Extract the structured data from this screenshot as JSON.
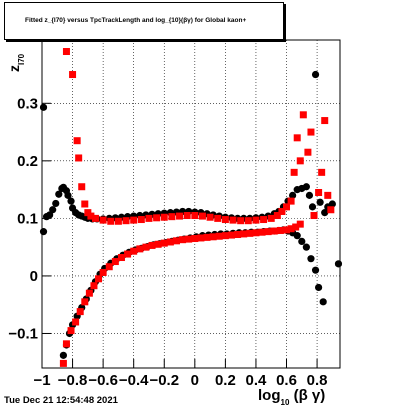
{
  "title": "Fitted  z_{I70}  versus TpcTrackLength and log_{10}(βγ) for Global kaon+",
  "timestamp": "Tue Dec 21 12:54:48 2021",
  "axis": {
    "y_label": "z",
    "y_label_sub": "I70",
    "x_label": "log",
    "x_label_sub": "10",
    "x_label_suffix": "(β γ)"
  },
  "colors": {
    "series_a": "#000000",
    "series_b": "#ff0000",
    "grid": "#000000"
  },
  "chart_data": {
    "type": "scatter",
    "title": "Fitted  z_{I70}  versus TpcTrackLength and log_{10}(βγ) for Global kaon+",
    "xlabel": "log_{10}(β γ)",
    "ylabel": "z_{I70}",
    "xlim": [
      -1.0,
      0.95
    ],
    "ylim": [
      -0.16,
      0.41
    ],
    "grid": true,
    "x_ticks": [
      -1,
      -0.8,
      -0.6,
      -0.4,
      -0.2,
      0,
      0.2,
      0.4,
      0.6,
      0.8
    ],
    "x_tick_labels": [
      "−1",
      "−0.8",
      "−0.6",
      "−0.4",
      "−0.2",
      "0",
      "0.2",
      "0.4",
      "0.6",
      "0.8"
    ],
    "y_ticks": [
      -0.1,
      0,
      0.1,
      0.2,
      0.3
    ],
    "y_tick_labels": [
      "−0.1",
      "0",
      "0.1",
      "0.2",
      "0.3"
    ],
    "series": [
      {
        "marker": "circle",
        "points": [
          [
            -0.99,
            0.293
          ],
          [
            -0.99,
            0.077
          ],
          [
            -0.97,
            0.103
          ],
          [
            -0.95,
            0.106
          ],
          [
            -0.93,
            0.115
          ],
          [
            -0.91,
            0.126
          ],
          [
            -0.89,
            0.142
          ],
          [
            -0.87,
            0.152
          ],
          [
            -0.86,
            0.154
          ],
          [
            -0.84,
            0.148
          ],
          [
            -0.83,
            0.14
          ],
          [
            -0.81,
            0.13
          ],
          [
            -0.8,
            0.118
          ],
          [
            -0.78,
            0.11
          ],
          [
            -0.76,
            0.106
          ],
          [
            -0.74,
            0.104
          ],
          [
            -0.72,
            0.102
          ],
          [
            -0.7,
            0.1
          ],
          [
            -0.67,
            0.099
          ],
          [
            -0.64,
            0.099
          ],
          [
            -0.6,
            0.099
          ],
          [
            -0.56,
            0.1
          ],
          [
            -0.52,
            0.101
          ],
          [
            -0.48,
            0.102
          ],
          [
            -0.44,
            0.103
          ],
          [
            -0.4,
            0.104
          ],
          [
            -0.36,
            0.105
          ],
          [
            -0.32,
            0.106
          ],
          [
            -0.28,
            0.107
          ],
          [
            -0.24,
            0.108
          ],
          [
            -0.2,
            0.109
          ],
          [
            -0.16,
            0.11
          ],
          [
            -0.12,
            0.111
          ],
          [
            -0.08,
            0.112
          ],
          [
            -0.04,
            0.112
          ],
          [
            0.0,
            0.111
          ],
          [
            0.04,
            0.11
          ],
          [
            0.08,
            0.108
          ],
          [
            0.12,
            0.106
          ],
          [
            0.16,
            0.104
          ],
          [
            0.2,
            0.102
          ],
          [
            0.24,
            0.101
          ],
          [
            0.28,
            0.1
          ],
          [
            0.32,
            0.1
          ],
          [
            0.36,
            0.1
          ],
          [
            0.4,
            0.101
          ],
          [
            0.44,
            0.102
          ],
          [
            0.48,
            0.104
          ],
          [
            0.52,
            0.108
          ],
          [
            0.55,
            0.112
          ],
          [
            0.58,
            0.12
          ],
          [
            0.61,
            0.13
          ],
          [
            0.64,
            0.14
          ],
          [
            0.67,
            0.15
          ],
          [
            0.7,
            0.152
          ],
          [
            0.73,
            0.155
          ],
          [
            0.75,
            0.14
          ],
          [
            0.77,
            0.12
          ],
          [
            0.79,
            0.35
          ],
          [
            0.82,
            0.128
          ],
          [
            0.85,
            0.11
          ],
          [
            0.87,
            0.12
          ],
          [
            0.9,
            0.125
          ],
          [
            0.94,
            0.021
          ],
          [
            -0.86,
            -0.138
          ],
          [
            -0.84,
            -0.12
          ],
          [
            -0.82,
            -0.1
          ],
          [
            -0.8,
            -0.085
          ],
          [
            -0.77,
            -0.07
          ],
          [
            -0.74,
            -0.055
          ],
          [
            -0.71,
            -0.04
          ],
          [
            -0.68,
            -0.025
          ],
          [
            -0.65,
            -0.01
          ],
          [
            -0.62,
            0.003
          ],
          [
            -0.59,
            0.013
          ],
          [
            -0.55,
            0.022
          ],
          [
            -0.51,
            0.03
          ],
          [
            -0.47,
            0.036
          ],
          [
            -0.43,
            0.041
          ],
          [
            -0.39,
            0.045
          ],
          [
            -0.35,
            0.048
          ],
          [
            -0.31,
            0.051
          ],
          [
            -0.27,
            0.054
          ],
          [
            -0.23,
            0.056
          ],
          [
            -0.19,
            0.058
          ],
          [
            -0.15,
            0.06
          ],
          [
            -0.11,
            0.062
          ],
          [
            -0.07,
            0.064
          ],
          [
            -0.03,
            0.066
          ],
          [
            0.01,
            0.068
          ],
          [
            0.05,
            0.07
          ],
          [
            0.09,
            0.071
          ],
          [
            0.13,
            0.072
          ],
          [
            0.17,
            0.073
          ],
          [
            0.21,
            0.073
          ],
          [
            0.25,
            0.074
          ],
          [
            0.29,
            0.075
          ],
          [
            0.33,
            0.075
          ],
          [
            0.37,
            0.076
          ],
          [
            0.41,
            0.076
          ],
          [
            0.45,
            0.077
          ],
          [
            0.49,
            0.078
          ],
          [
            0.52,
            0.078
          ],
          [
            0.55,
            0.079
          ],
          [
            0.58,
            0.08
          ],
          [
            0.61,
            0.078
          ],
          [
            0.64,
            0.075
          ],
          [
            0.67,
            0.07
          ],
          [
            0.7,
            0.06
          ],
          [
            0.73,
            0.05
          ],
          [
            0.76,
            0.03
          ],
          [
            0.79,
            0.01
          ],
          [
            0.81,
            -0.02
          ],
          [
            0.84,
            -0.045
          ]
        ]
      },
      {
        "marker": "square",
        "points": [
          [
            -0.84,
            0.39
          ],
          [
            -0.8,
            0.35
          ],
          [
            -0.77,
            0.235
          ],
          [
            -0.76,
            0.205
          ],
          [
            -0.74,
            0.155
          ],
          [
            -0.72,
            0.125
          ],
          [
            -0.7,
            0.11
          ],
          [
            -0.68,
            0.104
          ],
          [
            -0.65,
            0.1
          ],
          [
            -0.6,
            0.097
          ],
          [
            -0.55,
            0.095
          ],
          [
            -0.5,
            0.095
          ],
          [
            -0.45,
            0.096
          ],
          [
            -0.4,
            0.097
          ],
          [
            -0.35,
            0.098
          ],
          [
            -0.3,
            0.1
          ],
          [
            -0.25,
            0.101
          ],
          [
            -0.2,
            0.102
          ],
          [
            -0.15,
            0.103
          ],
          [
            -0.1,
            0.104
          ],
          [
            -0.05,
            0.105
          ],
          [
            0.0,
            0.105
          ],
          [
            0.05,
            0.104
          ],
          [
            0.1,
            0.102
          ],
          [
            0.15,
            0.1
          ],
          [
            0.2,
            0.098
          ],
          [
            0.25,
            0.097
          ],
          [
            0.3,
            0.096
          ],
          [
            0.35,
            0.096
          ],
          [
            0.4,
            0.097
          ],
          [
            0.45,
            0.098
          ],
          [
            0.5,
            0.1
          ],
          [
            0.54,
            0.105
          ],
          [
            0.57,
            0.112
          ],
          [
            0.6,
            0.12
          ],
          [
            0.63,
            0.13
          ],
          [
            0.65,
            0.18
          ],
          [
            0.67,
            0.24
          ],
          [
            0.69,
            0.2
          ],
          [
            0.71,
            0.28
          ],
          [
            0.74,
            0.215
          ],
          [
            0.76,
            0.25
          ],
          [
            0.78,
            0.105
          ],
          [
            0.81,
            0.145
          ],
          [
            0.83,
            0.18
          ],
          [
            0.85,
            0.27
          ],
          [
            0.87,
            0.14
          ],
          [
            0.89,
            0.115
          ],
          [
            -0.86,
            -0.152
          ],
          [
            -0.84,
            -0.118
          ],
          [
            -0.81,
            -0.095
          ],
          [
            -0.78,
            -0.08
          ],
          [
            -0.75,
            -0.062
          ],
          [
            -0.72,
            -0.045
          ],
          [
            -0.69,
            -0.03
          ],
          [
            -0.66,
            -0.017
          ],
          [
            -0.63,
            -0.005
          ],
          [
            -0.6,
            0.006
          ],
          [
            -0.56,
            0.016
          ],
          [
            -0.52,
            0.025
          ],
          [
            -0.48,
            0.032
          ],
          [
            -0.44,
            0.038
          ],
          [
            -0.4,
            0.043
          ],
          [
            -0.36,
            0.047
          ],
          [
            -0.32,
            0.05
          ],
          [
            -0.28,
            0.053
          ],
          [
            -0.24,
            0.055
          ],
          [
            -0.2,
            0.057
          ],
          [
            -0.16,
            0.059
          ],
          [
            -0.12,
            0.061
          ],
          [
            -0.08,
            0.063
          ],
          [
            -0.04,
            0.064
          ],
          [
            0.0,
            0.065
          ],
          [
            0.04,
            0.066
          ],
          [
            0.08,
            0.067
          ],
          [
            0.12,
            0.068
          ],
          [
            0.16,
            0.069
          ],
          [
            0.2,
            0.07
          ],
          [
            0.24,
            0.071
          ],
          [
            0.28,
            0.072
          ],
          [
            0.32,
            0.073
          ],
          [
            0.36,
            0.074
          ],
          [
            0.4,
            0.075
          ],
          [
            0.44,
            0.076
          ],
          [
            0.48,
            0.077
          ],
          [
            0.52,
            0.078
          ],
          [
            0.56,
            0.079
          ],
          [
            0.6,
            0.08
          ],
          [
            0.63,
            0.082
          ],
          [
            0.66,
            0.085
          ],
          [
            0.69,
            0.09
          ]
        ]
      }
    ]
  }
}
